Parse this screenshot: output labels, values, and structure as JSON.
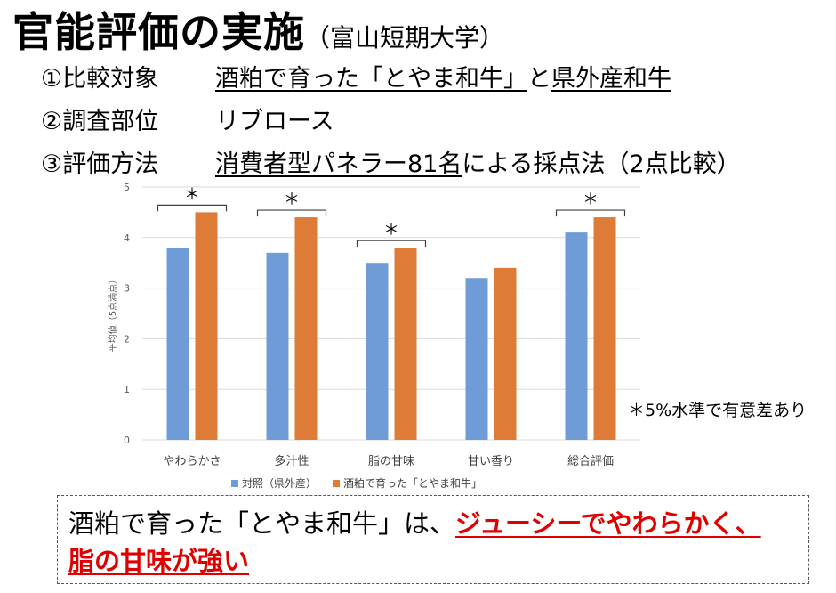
{
  "slide": {
    "title": "官能評価の実施",
    "title_sub": "（富山短期大学）",
    "rows": [
      {
        "label": "①比較対象",
        "value_underlined": "酒粕で育った「とやま和牛」",
        "value_mid": "と",
        "value_underlined2": "県外産和牛",
        "value_plain": ""
      },
      {
        "label": "②調査部位",
        "value_underlined": "",
        "value_mid": "リブロース",
        "value_underlined2": "",
        "value_plain": ""
      },
      {
        "label": "③評価方法",
        "value_underlined": "消費者型パネラー81名",
        "value_mid": "による採点法（2点比較）",
        "value_underlined2": "",
        "value_plain": ""
      }
    ],
    "sig_note": "＊5%水準で有意差あり",
    "conclusion": {
      "plain": "酒粕で育った「とやま和牛」は、",
      "emph1": "ジューシーでやわらかく、",
      "emph2": "脂の甘味が強い"
    }
  },
  "chart_data": {
    "type": "bar",
    "categories": [
      "やわらかさ",
      "多汁性",
      "脂の甘味",
      "甘い香り",
      "総合評価"
    ],
    "series": [
      {
        "name": "対照（県外産）",
        "color": "#6f9bd6",
        "values": [
          3.8,
          3.7,
          3.5,
          3.2,
          4.1
        ]
      },
      {
        "name": "酒粕で育った「とやま和牛」",
        "color": "#de7b37",
        "values": [
          4.5,
          4.4,
          3.8,
          3.4,
          4.4
        ]
      }
    ],
    "significant": [
      true,
      true,
      true,
      false,
      true
    ],
    "sig_marker": "＊",
    "ylabel": "平均値（5点満点）",
    "ylim": [
      0,
      5
    ],
    "yticks": [
      0,
      1,
      2,
      3,
      4,
      5
    ],
    "grid": true,
    "legend_position": "bottom"
  }
}
